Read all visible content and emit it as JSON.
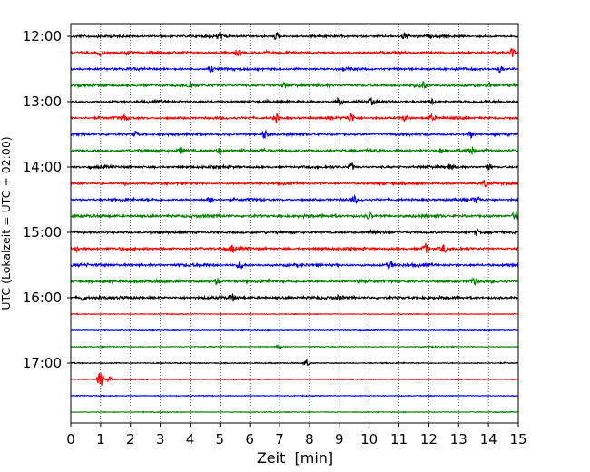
{
  "chart_data": {
    "type": "line",
    "subtype": "helicorder",
    "xlabel": "Zeit  [min]",
    "ylabel": "UTC (Lokalzeit = UTC + 02:00)",
    "xlim": [
      0,
      15
    ],
    "x_ticks": [
      0,
      1,
      2,
      3,
      4,
      5,
      6,
      7,
      8,
      9,
      10,
      11,
      12,
      13,
      14,
      15
    ],
    "x_tick_labels": [
      "0",
      "1",
      "2",
      "3",
      "4",
      "5",
      "6",
      "7",
      "8",
      "9",
      "10",
      "11",
      "12",
      "13",
      "14",
      "15"
    ],
    "x_grid": "dotted vertical lines at every minute",
    "row_interval_min": 15,
    "y_tick_labels": [
      "12:00",
      "13:00",
      "14:00",
      "15:00",
      "16:00",
      "17:00"
    ],
    "color_cycle": [
      "#000000",
      "#ff0000",
      "#0000ff",
      "#008000"
    ],
    "rows": [
      {
        "start": "12:00",
        "color": "#000000",
        "amp": 0.9,
        "events": [
          [
            5.0,
            1.5
          ],
          [
            6.9,
            1.7
          ],
          [
            11.2,
            2.0
          ]
        ],
        "end_min": 15
      },
      {
        "start": "12:15",
        "color": "#ff0000",
        "amp": 0.9,
        "events": [
          [
            1.0,
            1.5
          ],
          [
            1.9,
            1.7
          ],
          [
            5.6,
            1.5
          ],
          [
            14.8,
            1.8
          ]
        ],
        "end_min": 15
      },
      {
        "start": "12:30",
        "color": "#0000ff",
        "amp": 0.9,
        "events": [
          [
            4.7,
            1.5
          ],
          [
            14.4,
            1.8
          ]
        ],
        "end_min": 15
      },
      {
        "start": "12:45",
        "color": "#008000",
        "amp": 1.0,
        "events": [
          [
            4.0,
            1.8
          ],
          [
            7.2,
            1.2
          ],
          [
            11.8,
            2.2
          ],
          [
            14.0,
            1.4
          ]
        ],
        "end_min": 15
      },
      {
        "start": "13:00",
        "color": "#000000",
        "amp": 0.9,
        "events": [
          [
            9.0,
            2.2
          ],
          [
            10.1,
            1.5
          ],
          [
            12.1,
            1.5
          ]
        ],
        "end_min": 15
      },
      {
        "start": "13:15",
        "color": "#ff0000",
        "amp": 0.9,
        "events": [
          [
            1.8,
            1.7
          ],
          [
            6.9,
            2.0
          ],
          [
            9.4,
            2.4
          ],
          [
            11.2,
            1.5
          ],
          [
            12.1,
            1.4
          ]
        ],
        "end_min": 15
      },
      {
        "start": "13:30",
        "color": "#0000ff",
        "amp": 0.9,
        "events": [
          [
            2.2,
            1.5
          ],
          [
            6.5,
            2.2
          ],
          [
            13.4,
            1.8
          ]
        ],
        "end_min": 15
      },
      {
        "start": "13:45",
        "color": "#008000",
        "amp": 1.0,
        "events": [
          [
            3.7,
            1.8
          ],
          [
            5.0,
            1.5
          ],
          [
            12.4,
            1.5
          ],
          [
            13.4,
            1.7
          ]
        ],
        "end_min": 15
      },
      {
        "start": "14:00",
        "color": "#000000",
        "amp": 0.9,
        "events": [
          [
            9.4,
            2.0
          ],
          [
            12.7,
            1.5
          ],
          [
            14.0,
            1.4
          ]
        ],
        "end_min": 15
      },
      {
        "start": "14:15",
        "color": "#ff0000",
        "amp": 0.9,
        "events": [
          [
            1.8,
            1.5
          ],
          [
            13.9,
            2.0
          ]
        ],
        "end_min": 15
      },
      {
        "start": "14:30",
        "color": "#0000ff",
        "amp": 0.9,
        "events": [
          [
            4.7,
            1.8
          ],
          [
            9.5,
            1.7
          ],
          [
            13.6,
            1.6
          ]
        ],
        "end_min": 15
      },
      {
        "start": "14:45",
        "color": "#008000",
        "amp": 1.0,
        "events": [
          [
            10.0,
            1.8
          ],
          [
            14.9,
            2.0
          ]
        ],
        "end_min": 15
      },
      {
        "start": "15:00",
        "color": "#000000",
        "amp": 0.9,
        "events": [
          [
            10.1,
            1.7
          ],
          [
            13.6,
            1.4
          ]
        ],
        "end_min": 15
      },
      {
        "start": "15:15",
        "color": "#ff0000",
        "amp": 1.0,
        "events": [
          [
            0.2,
            1.5
          ],
          [
            5.4,
            2.0
          ],
          [
            11.9,
            2.5
          ],
          [
            12.5,
            1.8
          ]
        ],
        "end_min": 15
      },
      {
        "start": "15:30",
        "color": "#0000ff",
        "amp": 1.0,
        "events": [
          [
            5.7,
            2.2
          ],
          [
            10.7,
            2.0
          ]
        ],
        "end_min": 15
      },
      {
        "start": "15:45",
        "color": "#008000",
        "amp": 1.0,
        "events": [
          [
            4.9,
            1.5
          ],
          [
            9.7,
            1.8
          ],
          [
            13.5,
            1.6
          ]
        ],
        "end_min": 15
      },
      {
        "start": "16:00",
        "color": "#000000",
        "amp": 1.0,
        "events": [
          [
            0.4,
            1.5
          ],
          [
            5.4,
            2.0
          ],
          [
            9.0,
            1.2
          ]
        ],
        "end_min": 15
      },
      {
        "start": "16:15",
        "color": "#ff0000",
        "amp": 0.3,
        "events": [],
        "end_min": 15
      },
      {
        "start": "16:30",
        "color": "#0000ff",
        "amp": 0.35,
        "events": [],
        "end_min": 15
      },
      {
        "start": "16:45",
        "color": "#008000",
        "amp": 0.35,
        "events": [
          [
            7.0,
            1.0
          ]
        ],
        "end_min": 15
      },
      {
        "start": "17:00",
        "color": "#000000",
        "amp": 0.4,
        "events": [
          [
            7.9,
            1.8
          ]
        ],
        "end_min": 15
      },
      {
        "start": "17:15",
        "color": "#ff0000",
        "amp": 0.3,
        "events": [
          [
            1.0,
            4.5
          ],
          [
            1.3,
            1.5
          ]
        ],
        "end_min": 15
      },
      {
        "start": "17:30",
        "color": "#0000ff",
        "amp": 0.3,
        "events": [],
        "end_min": 15
      },
      {
        "start": "17:45",
        "color": "#008000",
        "amp": 0.3,
        "events": [],
        "end_min": 15
      }
    ]
  }
}
